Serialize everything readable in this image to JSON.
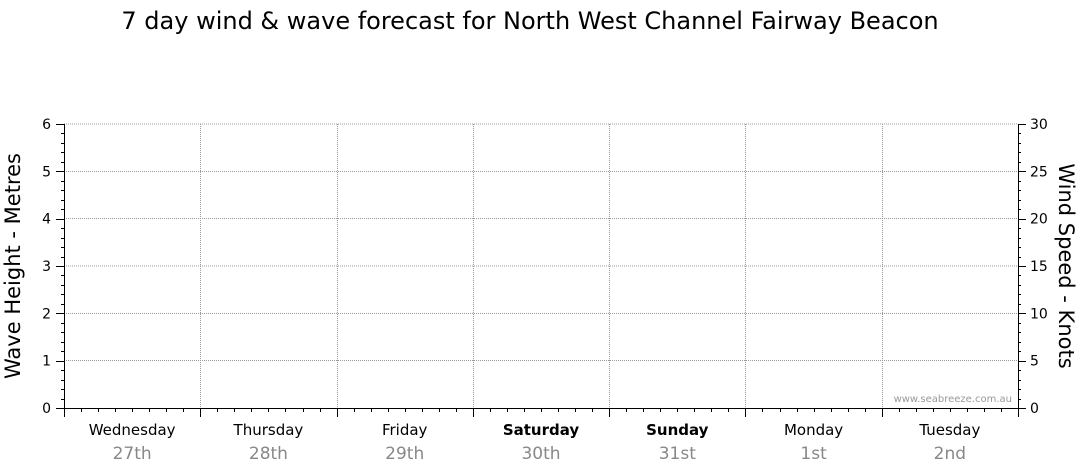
{
  "chart_data": {
    "type": "line",
    "title": "7 day wind & wave forecast for North West Channel Fairway Beacon",
    "ylabel_left": "Wave Height - Metres",
    "ylabel_right": "Wind Speed - Knots",
    "ylim_left": [
      0,
      6
    ],
    "yticks_left": [
      "0",
      "1",
      "2",
      "3",
      "4",
      "5",
      "6"
    ],
    "ylim_right": [
      0,
      30
    ],
    "yticks_right": [
      "0",
      "5",
      "10",
      "15",
      "20",
      "25",
      "30"
    ],
    "days": [
      {
        "name": "Wednesday",
        "date": "27th",
        "bold": false
      },
      {
        "name": "Thursday",
        "date": "28th",
        "bold": false
      },
      {
        "name": "Friday",
        "date": "29th",
        "bold": false
      },
      {
        "name": "Saturday",
        "date": "30th",
        "bold": true
      },
      {
        "name": "Sunday",
        "date": "31st",
        "bold": true
      },
      {
        "name": "Monday",
        "date": "1st",
        "bold": false
      },
      {
        "name": "Tuesday",
        "date": "2nd",
        "bold": false
      }
    ],
    "series": [],
    "grid": true,
    "credit": "www.seabreeze.com.au"
  },
  "colors": {
    "axis": "#000000",
    "grid": "#999999",
    "date_text": "#888888",
    "credit_text": "#999999"
  }
}
